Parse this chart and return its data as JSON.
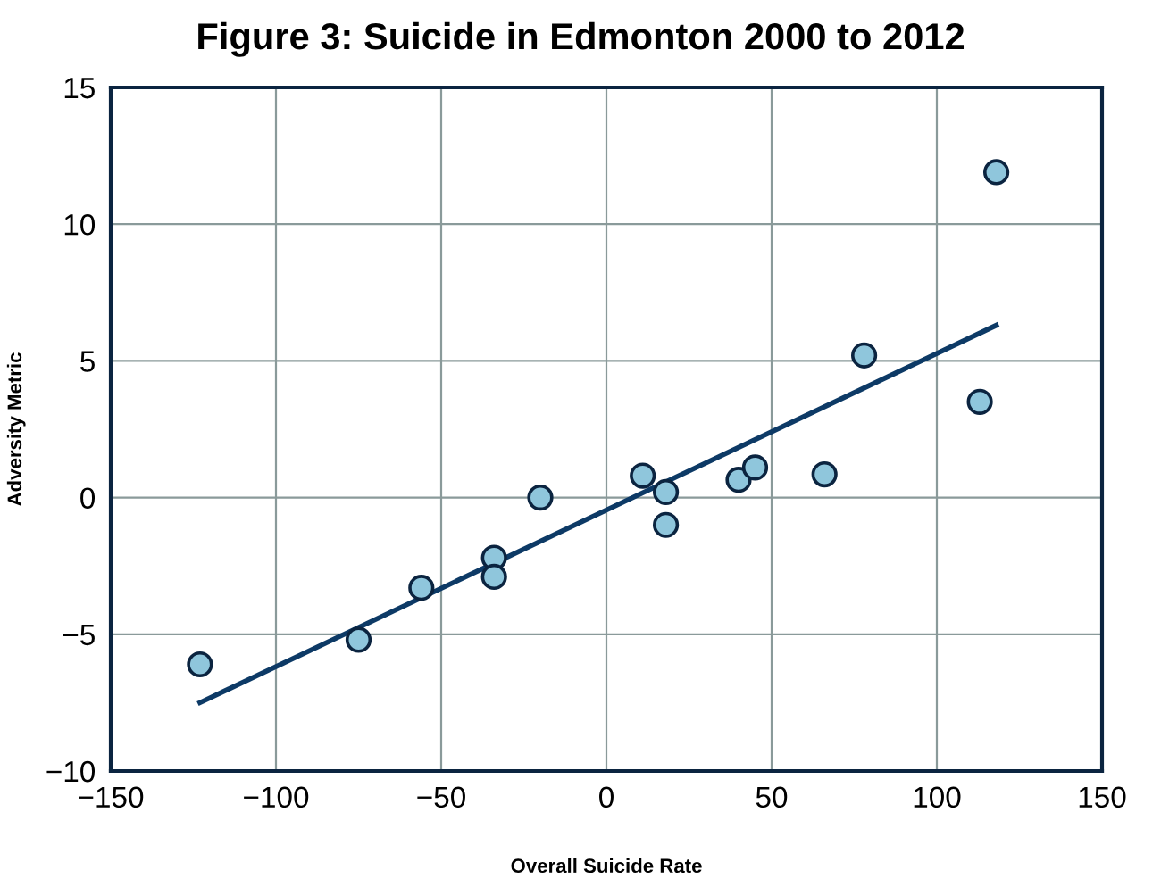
{
  "chart_data": {
    "type": "scatter",
    "title": "Figure 3: Suicide in Edmonton 2000 to 2012",
    "xlabel": "Overall Suicide Rate",
    "ylabel": "Adversity Metric",
    "series": [
      {
        "marker": "circle",
        "color": "#8fc6dc",
        "x": [
          -123,
          -75,
          -56,
          -34,
          -34,
          -20,
          11,
          18,
          18,
          40,
          45,
          66,
          78,
          113,
          118
        ],
        "values": [
          -6.1,
          -5.2,
          -3.3,
          -2.2,
          -2.9,
          0,
          0.8,
          0.2,
          -1.0,
          0.65,
          1.1,
          0.85,
          5.2,
          3.5,
          11.9
        ]
      },
      {
        "type": "line",
        "marker": "none",
        "color": "#0d3a66",
        "x": [
          -123,
          118
        ],
        "values": [
          -7.5,
          6.3
        ]
      }
    ],
    "xlim": [
      -150,
      150
    ],
    "xticks": [
      -150,
      -100,
      -50,
      0,
      50,
      100,
      150
    ],
    "ylim": [
      -10,
      15
    ],
    "yticks": [
      -10,
      -5,
      0,
      5,
      10,
      15
    ],
    "grid": true
  }
}
